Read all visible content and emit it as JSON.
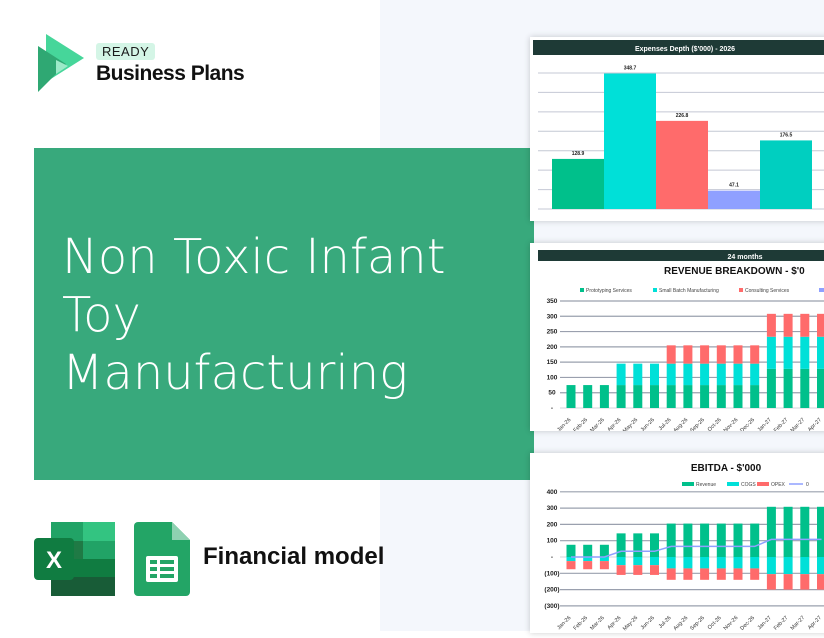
{
  "brand": {
    "badge": "READY",
    "name": "Business Plans"
  },
  "headline": "Non Toxic Infant Toy Manufacturing",
  "footer": {
    "label": "Financial model",
    "icons": [
      "excel-icon",
      "google-sheets-icon"
    ]
  },
  "colors": {
    "banner": "#38a97c",
    "green": "#00c08b",
    "cyan": "#00e0d8",
    "red": "#ff6b6b",
    "lavender": "#8fa0ff",
    "teal": "#00cfc0",
    "header": "#1e3a36"
  },
  "chart_data": [
    {
      "type": "bar",
      "title": "Expenses Depth ($'000) - 2026",
      "values": [
        128.9,
        348.7,
        226.8,
        47.1,
        176.5
      ],
      "labels": [
        "128.9",
        "348.7",
        "226.8",
        "47.1",
        "176.5"
      ],
      "ylim": [
        0,
        350
      ],
      "grid": true
    },
    {
      "type": "bar",
      "stacked": true,
      "header": "24 months",
      "title": "REVENUE BREAKDOWN - $'0",
      "ylim": [
        0,
        350
      ],
      "yticks": [
        "-",
        "50",
        "100",
        "150",
        "200",
        "250",
        "300",
        "350"
      ],
      "legend": "top",
      "grid": true,
      "categories": [
        "Jan-26",
        "Feb-26",
        "Mar-26",
        "Apr-26",
        "May-26",
        "Jun-26",
        "Jul-26",
        "Aug-26",
        "Sep-26",
        "Oct-26",
        "Nov-26",
        "Dec-26",
        "Jan-27",
        "Feb-27",
        "Mar-27",
        "Apr-27"
      ],
      "series": [
        {
          "name": "Prototyping Services",
          "values": [
            75,
            75,
            75,
            75,
            75,
            75,
            75,
            75,
            75,
            75,
            75,
            75,
            128,
            128,
            128,
            128
          ]
        },
        {
          "name": "Small Batch Manufacturing",
          "values": [
            0,
            0,
            0,
            70,
            70,
            70,
            70,
            70,
            70,
            70,
            70,
            70,
            105,
            105,
            105,
            105
          ]
        },
        {
          "name": "Consulting Services",
          "values": [
            0,
            0,
            0,
            0,
            0,
            0,
            60,
            60,
            60,
            60,
            60,
            60,
            75,
            75,
            75,
            75
          ]
        },
        {
          "name": "-",
          "values": [
            0,
            0,
            0,
            0,
            0,
            0,
            0,
            0,
            0,
            0,
            0,
            0,
            0,
            0,
            0,
            0
          ]
        }
      ]
    },
    {
      "type": "bar",
      "stacked": true,
      "title": "EBITDA - $'000",
      "ylim": [
        -300,
        400
      ],
      "yticks": [
        "(300)",
        "(200)",
        "(100)",
        "-",
        "100",
        "200",
        "300",
        "400"
      ],
      "legend": "top-right",
      "grid": true,
      "categories": [
        "Jan-26",
        "Feb-26",
        "Mar-26",
        "Apr-26",
        "May-26",
        "Jun-26",
        "Jul-26",
        "Aug-26",
        "Sep-26",
        "Oct-26",
        "Nov-26",
        "Dec-26",
        "Jan-27",
        "Feb-27",
        "Mar-27",
        "Apr-27"
      ],
      "series": [
        {
          "name": "Revenue",
          "values": [
            75,
            75,
            75,
            145,
            145,
            145,
            205,
            205,
            205,
            205,
            205,
            205,
            308,
            308,
            308,
            308
          ]
        },
        {
          "name": "COGS",
          "values": [
            -25,
            -25,
            -25,
            -50,
            -50,
            -50,
            -70,
            -70,
            -70,
            -70,
            -70,
            -70,
            -105,
            -105,
            -105,
            -105
          ]
        },
        {
          "name": "OPEX",
          "values": [
            -50,
            -50,
            -50,
            -60,
            -60,
            -60,
            -70,
            -70,
            -70,
            -70,
            -70,
            -70,
            -95,
            -95,
            -95,
            -95
          ]
        },
        {
          "name": "0",
          "type": "line",
          "values": [
            0,
            0,
            0,
            35,
            35,
            35,
            65,
            65,
            65,
            65,
            65,
            65,
            108,
            108,
            108,
            108
          ]
        }
      ]
    }
  ]
}
